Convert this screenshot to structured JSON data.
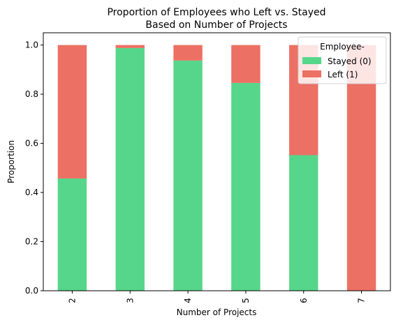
{
  "chart_data": {
    "type": "bar",
    "stacked": true,
    "title": "Proportion of Employees who Left vs. Stayed\nBased on Number of Projects",
    "xlabel": "Number of Projects",
    "ylabel": "Proportion",
    "categories": [
      "2",
      "3",
      "4",
      "5",
      "6",
      "7"
    ],
    "ylim": [
      0,
      1.05
    ],
    "yticks": [
      "0.0",
      "0.2",
      "0.4",
      "0.6",
      "0.8",
      "1.0"
    ],
    "grid": false,
    "legend": {
      "title": "Employee-",
      "placement": "top-right",
      "entries": [
        "Stayed (0)",
        "Left (1)"
      ]
    },
    "series": [
      {
        "name": "Stayed (0)",
        "color": "#56d68a",
        "values": [
          0.457,
          0.988,
          0.937,
          0.846,
          0.552,
          0.0
        ]
      },
      {
        "name": "Left (1)",
        "color": "#ec7063",
        "values": [
          0.543,
          0.012,
          0.063,
          0.154,
          0.448,
          1.0
        ]
      }
    ]
  }
}
